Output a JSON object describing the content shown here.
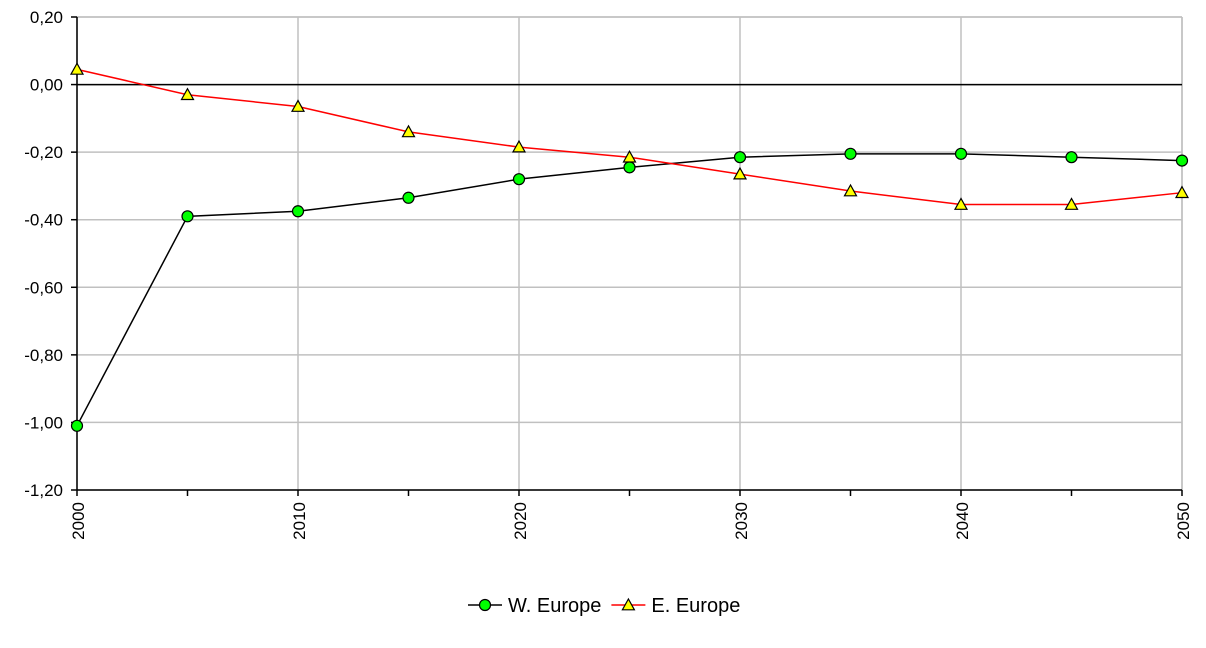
{
  "chart_data": {
    "type": "line",
    "title": "",
    "xlabel": "",
    "ylabel": "",
    "x": [
      2000,
      2005,
      2010,
      2015,
      2020,
      2025,
      2030,
      2035,
      2040,
      2045,
      2050
    ],
    "x_tick_labels": [
      "2000",
      "2010",
      "2020",
      "2030",
      "2040",
      "2050"
    ],
    "y_tick_labels": [
      "0,20",
      "0,00",
      "-0,20",
      "-0,40",
      "-0,60",
      "-0,80",
      "-1,00",
      "-1,20"
    ],
    "xlim": [
      2000,
      2050
    ],
    "ylim": [
      -1.2,
      0.2
    ],
    "grid": true,
    "legend_position": "bottom",
    "series": [
      {
        "name": "W. Europe",
        "marker": "circle",
        "line_color": "#000000",
        "marker_color": "#00ff00",
        "values": [
          -1.01,
          -0.39,
          -0.375,
          -0.335,
          -0.28,
          -0.245,
          -0.215,
          -0.205,
          -0.205,
          -0.215,
          -0.225
        ]
      },
      {
        "name": "E. Europe",
        "marker": "triangle",
        "line_color": "#ff0000",
        "marker_color": "#ffff00",
        "values": [
          0.045,
          -0.03,
          -0.065,
          -0.14,
          -0.185,
          -0.215,
          -0.265,
          -0.315,
          -0.355,
          -0.355,
          -0.32
        ]
      }
    ]
  }
}
